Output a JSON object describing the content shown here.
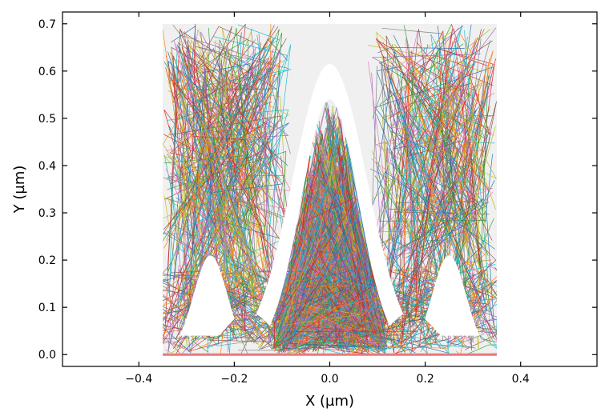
{
  "chart_data": {
    "type": "line",
    "title": "",
    "xlabel": "X (µm)",
    "ylabel": "Y (µm)",
    "xlim": [
      -0.56,
      0.56
    ],
    "ylim": [
      -0.025,
      0.725
    ],
    "xticks": [
      -0.4,
      -0.2,
      0.0,
      0.2,
      0.4
    ],
    "xtick_labels": [
      "−0.4",
      "−0.2",
      "0.0",
      "0.2",
      "0.4"
    ],
    "yticks": [
      0.0,
      0.1,
      0.2,
      0.3,
      0.4,
      0.5,
      0.6,
      0.7
    ],
    "ytick_labels": [
      "0.0",
      "0.1",
      "0.2",
      "0.3",
      "0.4",
      "0.5",
      "0.6",
      "0.7"
    ],
    "grid": false,
    "legend": "none",
    "tick_direction": "in",
    "domain": {
      "x": [
        -0.35,
        0.35
      ],
      "y": [
        0.0,
        0.7
      ],
      "fill_color": "#f0f0f0"
    },
    "structure": {
      "description_color": "#ffffff",
      "ridge_center_x": 0.0,
      "ridge_peak_y": 0.54,
      "trench_centers_x": [
        -0.17,
        0.17
      ],
      "trench_bottom_y": 0.09,
      "outer_shoulder_y": 0.21,
      "outer_shoulder_x": [
        -0.27,
        0.27
      ],
      "white_gap_peak_y": 0.615
    },
    "trajectory_palette": [
      "#1f77b4",
      "#ff7f0e",
      "#2ca02c",
      "#d62728",
      "#9467bd",
      "#8c564b",
      "#e377c2",
      "#7f7f7f",
      "#bcbd22",
      "#17becf"
    ],
    "bottom_line_color": "#e87a7a",
    "trajectory_count_estimate": 1800
  }
}
